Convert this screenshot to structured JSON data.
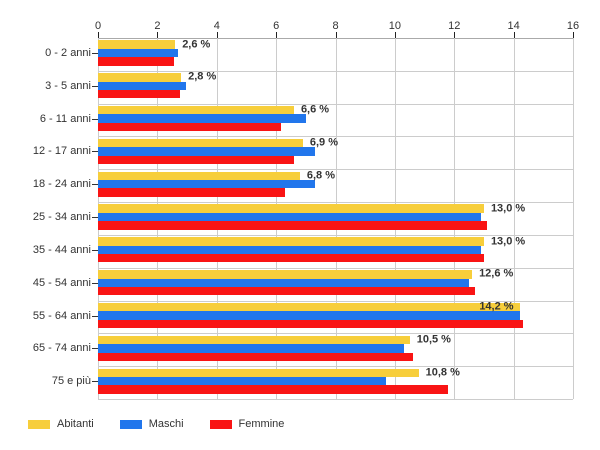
{
  "chart_data": {
    "type": "bar",
    "orientation": "horizontal",
    "title": "",
    "categories": [
      "0 - 2 anni",
      "3 - 5 anni",
      "6 - 11 anni",
      "12 - 17 anni",
      "18 - 24 anni",
      "25 - 34 anni",
      "35 - 44 anni",
      "45 - 54 anni",
      "55 - 64 anni",
      "65 - 74 anni",
      "75 e più"
    ],
    "series": [
      {
        "name": "Abitanti",
        "color": "#f7ce3b",
        "values": [
          2.6,
          2.8,
          6.6,
          6.9,
          6.8,
          13.0,
          13.0,
          12.6,
          14.2,
          10.5,
          10.8
        ]
      },
      {
        "name": "Maschi",
        "color": "#2176ec",
        "values": [
          2.7,
          2.95,
          7.0,
          7.3,
          7.3,
          12.9,
          12.9,
          12.5,
          14.2,
          10.3,
          9.7
        ]
      },
      {
        "name": "Femmine",
        "color": "#f91414",
        "values": [
          2.55,
          2.75,
          6.15,
          6.6,
          6.3,
          13.1,
          13.0,
          12.7,
          14.3,
          10.6,
          11.8
        ]
      }
    ],
    "value_labels": [
      "2,6 %",
      "2,8 %",
      "6,6 %",
      "6,9 %",
      "6,8 %",
      "13,0 %",
      "13,0 %",
      "12,6 %",
      "14,2 %",
      "10,5 %",
      "10,8 %"
    ],
    "xlim": [
      0,
      16
    ],
    "x_ticks": [
      0,
      2,
      4,
      6,
      8,
      10,
      12,
      14,
      16
    ],
    "grid": true,
    "legend_position": "bottom-left"
  },
  "colors": {
    "background": "#ffffff",
    "gridline": "#cccccc",
    "axis_line": "#aaaaaa",
    "text": "#333333"
  }
}
